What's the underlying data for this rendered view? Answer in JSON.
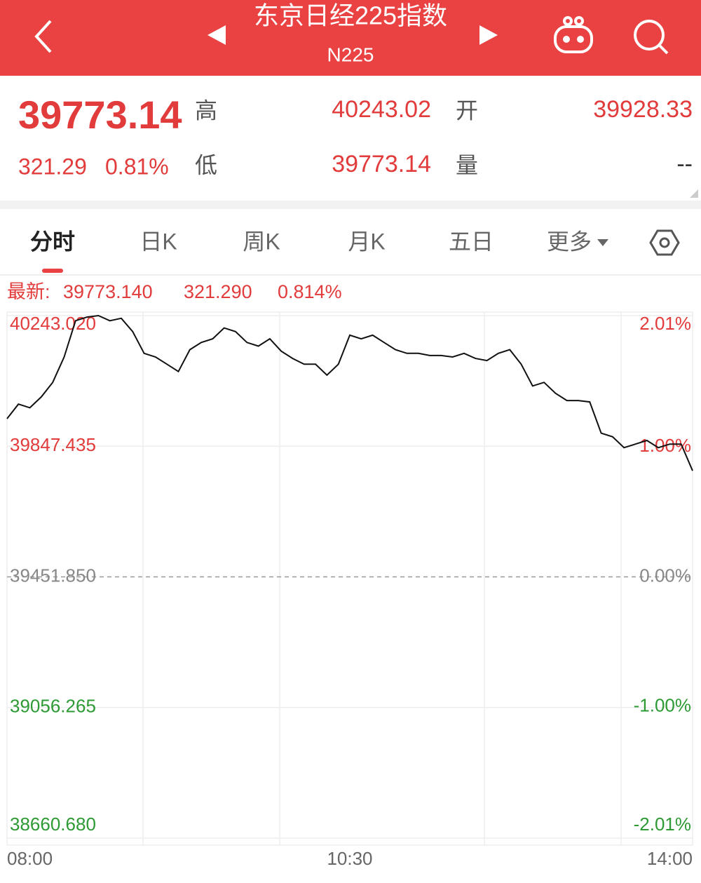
{
  "header": {
    "title": "东京日经225指数",
    "subtitle": "N225"
  },
  "quote": {
    "price": "39773.14",
    "change": "321.29",
    "change_pct": "0.81%",
    "stats": [
      {
        "label": "高",
        "value": "40243.02"
      },
      {
        "label": "开",
        "value": "39928.33"
      },
      {
        "label": "低",
        "value": "39773.14"
      },
      {
        "label": "量",
        "value": "--"
      }
    ]
  },
  "tabs": [
    "分时",
    "日K",
    "周K",
    "月K",
    "五日",
    "更多"
  ],
  "chart_data": {
    "type": "line",
    "info": {
      "label": "最新:",
      "values": [
        "39773.140",
        "321.290",
        "0.814%"
      ]
    },
    "x": [
      0,
      5,
      10,
      15,
      20,
      25,
      30,
      35,
      40,
      45,
      50,
      55,
      60,
      65,
      70,
      75,
      80,
      85,
      90,
      95,
      100,
      105,
      110,
      115,
      120,
      125,
      130,
      135,
      140,
      145,
      150,
      155,
      160,
      165,
      170,
      175,
      180,
      185,
      190,
      195,
      200,
      205,
      210,
      215,
      220,
      225,
      230,
      235,
      240,
      245,
      250,
      255,
      260,
      265,
      270,
      275,
      280,
      285,
      290,
      295,
      300
    ],
    "xlim": [
      0,
      300
    ],
    "xticks": [
      {
        "value": 0,
        "label": "08:00"
      },
      {
        "value": 150,
        "label": "10:30"
      },
      {
        "value": 300,
        "label": "14:00"
      }
    ],
    "series": [
      {
        "color": "#111111",
        "values": [
          39930.9,
          39974.9,
          39963.9,
          39996.9,
          40040.8,
          40117.8,
          40227.6,
          40238.6,
          40243.0,
          40227.6,
          40235.0,
          40194.7,
          40128.7,
          40117.8,
          40095.8,
          40073.8,
          40139.7,
          40161.7,
          40172.7,
          40205.7,
          40194.7,
          40161.7,
          40150.7,
          40172.7,
          40135.3,
          40113.3,
          40095.8,
          40095.8,
          40062.8,
          40095.8,
          40183.7,
          40172.7,
          40183.7,
          40161.7,
          40139.7,
          40128.7,
          40128.7,
          40122.2,
          40122.2,
          40117.8,
          40128.7,
          40113.3,
          40106.8,
          40128.7,
          40139.7,
          40095.8,
          40029.9,
          40040.8,
          40007.9,
          39985.9,
          39985.9,
          39981.5,
          39887.0,
          39876.0,
          39843.1,
          39854.0,
          39865.0,
          39843.1,
          39854.0,
          39854.0,
          39773.14
        ]
      }
    ],
    "ylim": [
      38660.68,
      40243.02
    ],
    "yticks": [
      {
        "value": 38660.68,
        "label": "38660.680"
      },
      {
        "value": 39056.265,
        "label": "39056.265"
      },
      {
        "value": 39451.85,
        "label": "39451.850"
      },
      {
        "value": 39847.435,
        "label": "39847.435"
      },
      {
        "value": 40243.02,
        "label": "40243.020"
      }
    ],
    "y2lim": [
      -2.01,
      2.01
    ],
    "y2ticks": [
      {
        "value": -2.01,
        "label": "-2.01%"
      },
      {
        "value": -1,
        "label": "-1.00%"
      },
      {
        "value": 0,
        "label": "0.00%"
      },
      {
        "value": 1,
        "label": "1.00%"
      },
      {
        "value": 2.01,
        "label": "2.01%"
      }
    ],
    "grid": true,
    "up_color": "#e23b3b",
    "down_color": "#2e9a34",
    "flat_color": "#888888"
  }
}
